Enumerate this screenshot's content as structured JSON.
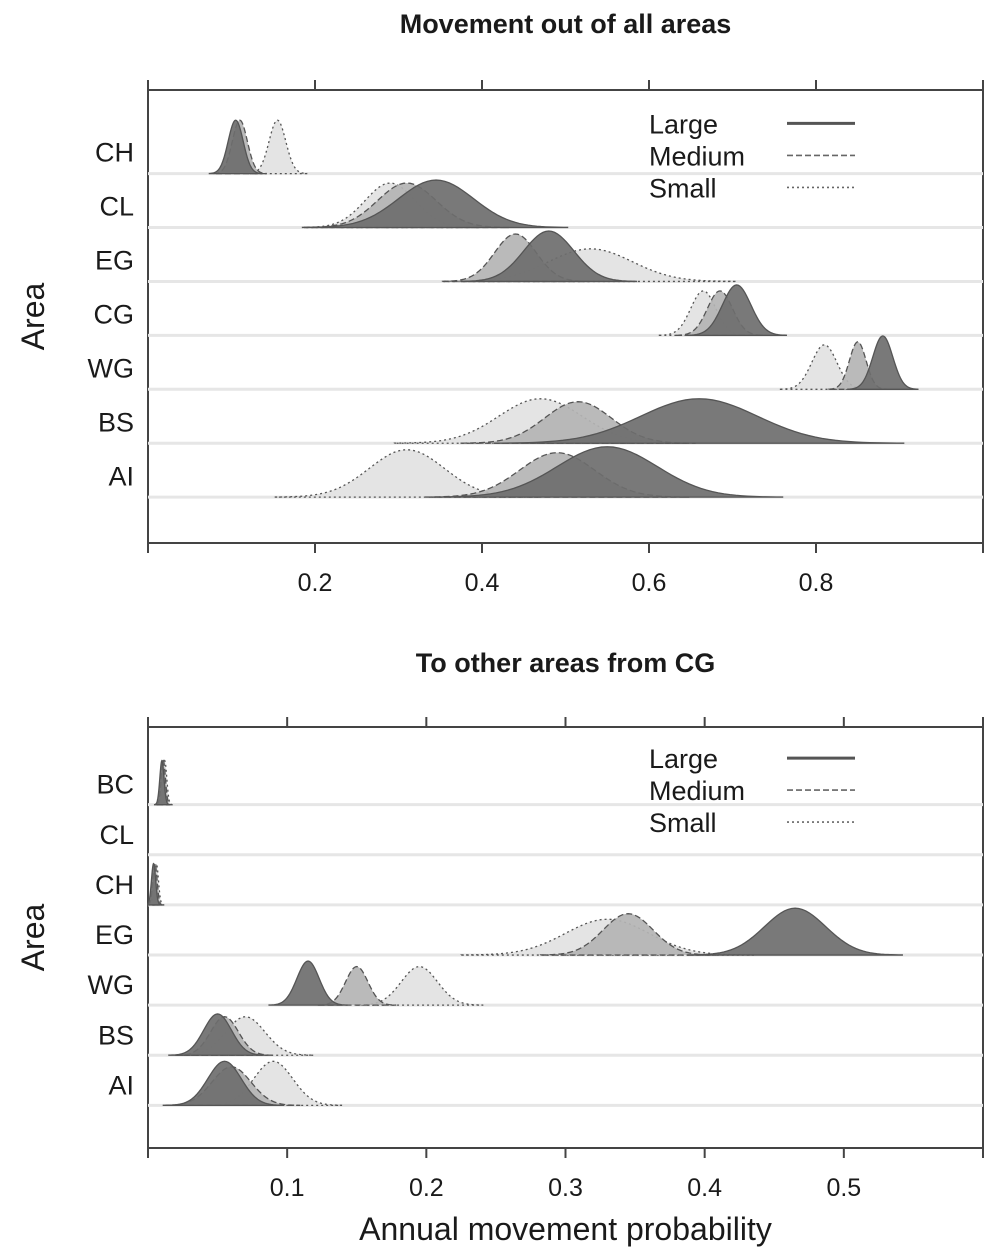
{
  "chart_data": [
    {
      "type": "area",
      "title": "Movement out of all areas",
      "ylabel": "Area",
      "xlabel": "",
      "xlim": [
        0.0,
        1.0
      ],
      "xticks": [
        "0.2",
        "0.4",
        "0.6",
        "0.8"
      ],
      "xtick_values": [
        0.2,
        0.4,
        0.6,
        0.8
      ],
      "categories": [
        "CH",
        "CL",
        "EG",
        "CG",
        "WG",
        "BS",
        "AI"
      ],
      "legend": {
        "placement": "top-right",
        "entries": [
          "Large",
          "Medium",
          "Small"
        ]
      },
      "series": [
        {
          "name": "Large",
          "color": "#6e6e6e",
          "dash": "",
          "peaks": [
            0.105,
            0.345,
            0.48,
            0.705,
            0.88,
            0.66,
            0.55
          ],
          "sd": [
            0.009,
            0.045,
            0.03,
            0.017,
            0.012,
            0.07,
            0.06
          ],
          "height": [
            0.9,
            0.8,
            0.85,
            0.85,
            0.9,
            0.75,
            0.85
          ]
        },
        {
          "name": "Medium",
          "color": "#b4b4b4",
          "dash": "6,3",
          "peaks": [
            0.11,
            0.31,
            0.44,
            0.685,
            0.85,
            0.515,
            0.49
          ],
          "sd": [
            0.009,
            0.035,
            0.025,
            0.015,
            0.01,
            0.04,
            0.045
          ],
          "height": [
            0.9,
            0.75,
            0.8,
            0.75,
            0.8,
            0.7,
            0.75
          ]
        },
        {
          "name": "Small",
          "color": "#e2e2e2",
          "dash": "2,3",
          "peaks": [
            0.155,
            0.29,
            0.53,
            0.665,
            0.81,
            0.47,
            0.31
          ],
          "sd": [
            0.01,
            0.03,
            0.05,
            0.015,
            0.015,
            0.05,
            0.045
          ],
          "height": [
            0.9,
            0.75,
            0.55,
            0.75,
            0.75,
            0.75,
            0.8
          ]
        }
      ]
    },
    {
      "type": "area",
      "title": "To other areas from CG",
      "ylabel": "Area",
      "xlabel": "Annual movement probability",
      "xlim": [
        0.0,
        0.6
      ],
      "xticks": [
        "0.1",
        "0.2",
        "0.3",
        "0.4",
        "0.5"
      ],
      "xtick_values": [
        0.1,
        0.2,
        0.3,
        0.4,
        0.5
      ],
      "categories": [
        "BC",
        "CL",
        "CH",
        "EG",
        "WG",
        "BS",
        "AI"
      ],
      "legend": {
        "placement": "top-right",
        "entries": [
          "Large",
          "Medium",
          "Small"
        ]
      },
      "series": [
        {
          "name": "Large",
          "color": "#6e6e6e",
          "dash": "",
          "peaks": [
            0.01,
            null,
            0.004,
            0.465,
            0.115,
            0.05,
            0.055
          ],
          "sd": [
            0.0015,
            null,
            0.0015,
            0.022,
            0.008,
            0.01,
            0.012
          ],
          "height": [
            0.8,
            0,
            0.75,
            0.85,
            0.8,
            0.75,
            0.8
          ]
        },
        {
          "name": "Medium",
          "color": "#b4b4b4",
          "dash": "6,3",
          "peaks": [
            0.011,
            null,
            0.005,
            0.345,
            0.15,
            0.055,
            0.06
          ],
          "sd": [
            0.0015,
            null,
            0.0015,
            0.018,
            0.008,
            0.01,
            0.014
          ],
          "height": [
            0.8,
            0,
            0.75,
            0.75,
            0.7,
            0.7,
            0.7
          ]
        },
        {
          "name": "Small",
          "color": "#e2e2e2",
          "dash": "2,3",
          "peaks": [
            0.012,
            null,
            0.006,
            0.33,
            0.195,
            0.07,
            0.09
          ],
          "sd": [
            0.0015,
            null,
            0.0015,
            0.03,
            0.013,
            0.014,
            0.014
          ],
          "height": [
            0.8,
            0,
            0.75,
            0.65,
            0.7,
            0.7,
            0.8
          ]
        }
      ]
    }
  ]
}
